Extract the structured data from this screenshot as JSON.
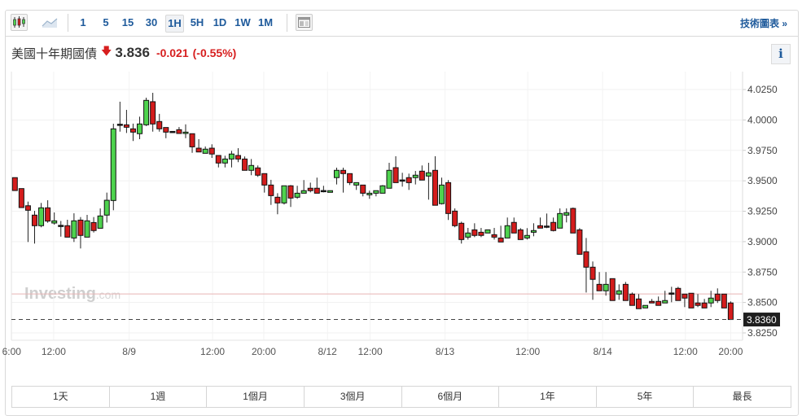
{
  "toolbar": {
    "chart_type_icons": [
      "candlestick-icon",
      "area-chart-icon"
    ],
    "intervals": [
      "1",
      "5",
      "15",
      "30",
      "1H",
      "5H",
      "1D",
      "1W",
      "1M"
    ],
    "active_interval": "1H",
    "layout_icon": "layout-icon",
    "technical_chart_label": "技術圖表 »"
  },
  "header": {
    "name": "美國十年期國債",
    "direction_icon": "arrow-down-icon",
    "price": "3.836",
    "change": "-0.021",
    "change_pct": "(-0.55%)",
    "info_label": "i"
  },
  "watermark": {
    "brand": "Investing",
    "suffix": ".com"
  },
  "colors": {
    "up": "#4ed34e",
    "down": "#d41c1c",
    "negative_text": "#d71f1f",
    "link": "#1e5a9b",
    "prev_close_line": "#e8b4b4"
  },
  "chart_data": {
    "type": "candlestick",
    "interval": "1H",
    "ylim": [
      3.82,
      4.04
    ],
    "y_ticks": [
      "4.0250",
      "4.0000",
      "3.9750",
      "3.9500",
      "3.9250",
      "3.9000",
      "3.8750",
      "3.8500",
      "3.8250"
    ],
    "last_price_label": "3.8360",
    "last_price": 3.836,
    "previous_close": 3.857,
    "grid": true,
    "x_ticks": [
      {
        "label": "6:00",
        "at_candle": 0.5
      },
      {
        "label": "12:00",
        "at_candle": 6.9
      },
      {
        "label": "8/9",
        "at_candle": 18.4
      },
      {
        "label": "12:00",
        "at_candle": 31.1
      },
      {
        "label": "20:00",
        "at_candle": 38.9
      },
      {
        "label": "8/12",
        "at_candle": 48.6
      },
      {
        "label": "12:00",
        "at_candle": 55.1
      },
      {
        "label": "8/13",
        "at_candle": 66.5
      },
      {
        "label": "12:00",
        "at_candle": 79.1
      },
      {
        "label": "8/14",
        "at_candle": 90.5
      },
      {
        "label": "12:00",
        "at_candle": 103.1
      },
      {
        "label": "20:00",
        "at_candle": 110
      }
    ],
    "ohlc_fields": [
      "open",
      "high",
      "low",
      "close"
    ],
    "candles": [
      [
        3.9526,
        3.9526,
        3.942,
        3.942
      ],
      [
        3.9436,
        3.9436,
        3.928,
        3.928
      ],
      [
        3.9295,
        3.9329,
        3.8997,
        3.9258
      ],
      [
        3.9218,
        3.9253,
        3.8984,
        3.9131
      ],
      [
        3.9131,
        3.9318,
        3.9118,
        3.9278
      ],
      [
        3.9278,
        3.934,
        3.9155,
        3.9169
      ],
      [
        3.9153,
        3.924,
        3.914,
        3.9171
      ],
      [
        3.9134,
        3.917,
        3.9041,
        3.9132
      ],
      [
        3.9131,
        3.918,
        3.9037,
        3.9037
      ],
      [
        3.903,
        3.9233,
        3.8997,
        3.9171
      ],
      [
        3.9177,
        3.9202,
        3.8944,
        3.9051
      ],
      [
        3.9037,
        3.922,
        3.9037,
        3.9171
      ],
      [
        3.9157,
        3.9202,
        3.9075,
        3.9091
      ],
      [
        3.911,
        3.9273,
        3.911,
        3.9211
      ],
      [
        3.9218,
        3.9403,
        3.9157,
        3.934
      ],
      [
        3.9338,
        3.9969,
        3.9258,
        3.9927
      ],
      [
        3.9965,
        4.015,
        3.9904,
        3.9963
      ],
      [
        3.996,
        4.0083,
        3.9893,
        3.994
      ],
      [
        3.9927,
        3.997,
        3.9827,
        3.99
      ],
      [
        3.9887,
        4.0027,
        3.9842,
        3.9967
      ],
      [
        3.996,
        4.0183,
        3.995,
        4.0161
      ],
      [
        4.015,
        4.0223,
        3.9904,
        3.9967
      ],
      [
        3.9987,
        4.005,
        3.9904,
        3.9927
      ],
      [
        3.9938,
        3.9938,
        3.985,
        3.99
      ],
      [
        3.9906,
        3.9906,
        3.9902,
        3.9902
      ],
      [
        3.992,
        3.9942,
        3.9889,
        3.9889
      ],
      [
        3.9889,
        3.9964,
        3.985,
        3.99
      ],
      [
        3.9887,
        3.9887,
        3.973,
        3.9779
      ],
      [
        3.9768,
        3.9842,
        3.9737,
        3.9737
      ],
      [
        3.9726,
        3.9782,
        3.9726,
        3.976
      ],
      [
        3.9768,
        3.98,
        3.9688,
        3.972
      ],
      [
        3.9708,
        3.9708,
        3.961,
        3.9646
      ],
      [
        3.9646,
        3.9706,
        3.961,
        3.9679
      ],
      [
        3.9679,
        3.9746,
        3.961,
        3.972
      ],
      [
        3.9708,
        3.9768,
        3.9653,
        3.9679
      ],
      [
        3.9679,
        3.97,
        3.9586,
        3.9586
      ],
      [
        3.9586,
        3.9679,
        3.9546,
        3.9626
      ],
      [
        3.9606,
        3.9626,
        3.9532,
        3.9546
      ],
      [
        3.9559,
        3.9559,
        3.9403,
        3.9465
      ],
      [
        3.9465,
        3.9508,
        3.9302,
        3.9378
      ],
      [
        3.9365,
        3.9398,
        3.9225,
        3.9318
      ],
      [
        3.9318,
        3.9459,
        3.9305,
        3.9459
      ],
      [
        3.9459,
        3.9465,
        3.9285,
        3.9358
      ],
      [
        3.9365,
        3.9459,
        3.9352,
        3.9398
      ],
      [
        3.9398,
        3.9506,
        3.9398,
        3.9419
      ],
      [
        3.9439,
        3.9485,
        3.9405,
        3.9419
      ],
      [
        3.9439,
        3.9526,
        3.9398,
        3.9398
      ],
      [
        3.942,
        3.9459,
        3.9405,
        3.9418
      ],
      [
        3.9405,
        3.9419,
        3.9405,
        3.9419
      ],
      [
        3.9526,
        3.9608,
        3.947,
        3.9586
      ],
      [
        3.9586,
        3.9608,
        3.9403,
        3.9559
      ],
      [
        3.9559,
        3.9559,
        3.9465,
        3.9485
      ],
      [
        3.9465,
        3.9485,
        3.9425,
        3.9485
      ],
      [
        3.9465,
        3.9465,
        3.9372,
        3.9398
      ],
      [
        3.9385,
        3.9419,
        3.9352,
        3.9398
      ],
      [
        3.9398,
        3.9419,
        3.9372,
        3.9419
      ],
      [
        3.9398,
        3.9465,
        3.9398,
        3.9459
      ],
      [
        3.9439,
        3.9648,
        3.9439,
        3.9586
      ],
      [
        3.9608,
        3.9702,
        3.9485,
        3.9485
      ],
      [
        3.9507,
        3.9566,
        3.9452,
        3.9505
      ],
      [
        3.9526,
        3.9559,
        3.9425,
        3.9485
      ],
      [
        3.9526,
        3.9581,
        3.947,
        3.9546
      ],
      [
        3.9579,
        3.9626,
        3.9506,
        3.9506
      ],
      [
        3.9539,
        3.9648,
        3.9345,
        3.9566
      ],
      [
        3.9586,
        3.9702,
        3.9299,
        3.9299
      ],
      [
        3.9312,
        3.9526,
        3.9305,
        3.9465
      ],
      [
        3.9485,
        3.9506,
        3.9178,
        3.9231
      ],
      [
        3.9251,
        3.9273,
        3.9118,
        3.9131
      ],
      [
        3.9151,
        3.9164,
        3.8984,
        3.9017
      ],
      [
        3.9037,
        3.9113,
        3.9017,
        3.9071
      ],
      [
        3.9097,
        3.9151,
        3.9037,
        3.9051
      ],
      [
        3.9077,
        3.9113,
        3.9037,
        3.9051
      ],
      [
        3.9071,
        3.9097,
        3.9071,
        3.9097
      ],
      [
        3.9057,
        3.9113,
        3.9017,
        3.9037
      ],
      [
        3.903,
        3.9131,
        3.8997,
        3.8997
      ],
      [
        3.903,
        3.9198,
        3.903,
        3.9131
      ],
      [
        3.9158,
        3.9198,
        3.9071,
        3.9071
      ],
      [
        3.9097,
        3.9111,
        3.9017,
        3.9017
      ],
      [
        3.903,
        3.9111,
        3.9017,
        3.9051
      ],
      [
        3.9077,
        3.9151,
        3.9044,
        3.9091
      ],
      [
        3.9131,
        3.9198,
        3.9111,
        3.9111
      ],
      [
        3.9128,
        3.9231,
        3.9111,
        3.9124
      ],
      [
        3.9158,
        3.9198,
        3.9084,
        3.9091
      ],
      [
        3.9111,
        3.9273,
        3.9111,
        3.9231
      ],
      [
        3.9218,
        3.9273,
        3.9158,
        3.9238
      ],
      [
        3.9273,
        3.928,
        3.9071,
        3.9071
      ],
      [
        3.9097,
        3.9111,
        3.8896,
        3.8896
      ],
      [
        3.8917,
        3.903,
        3.8582,
        3.879
      ],
      [
        3.879,
        3.8837,
        3.8522,
        3.869
      ],
      [
        3.8649,
        3.875,
        3.8596,
        3.8596
      ],
      [
        3.8596,
        3.875,
        3.8556,
        3.8649
      ],
      [
        3.8696,
        3.8696,
        3.8516,
        3.8516
      ],
      [
        3.8569,
        3.8649,
        3.8522,
        3.8596
      ],
      [
        3.8649,
        3.8669,
        3.8516,
        3.8516
      ],
      [
        3.8569,
        3.8582,
        3.8476,
        3.8476
      ],
      [
        3.8529,
        3.8569,
        3.8449,
        3.8449
      ],
      [
        3.8455,
        3.8476,
        3.8455,
        3.8476
      ],
      [
        3.8509,
        3.8529,
        3.8496,
        3.8496
      ],
      [
        3.8509,
        3.8549,
        3.8476,
        3.8476
      ],
      [
        3.8496,
        3.8596,
        3.8496,
        3.8516
      ],
      [
        3.8578,
        3.8629,
        3.8502,
        3.8574
      ],
      [
        3.8616,
        3.8629,
        3.8516,
        3.8516
      ],
      [
        3.8569,
        3.8569,
        3.8462,
        3.8536
      ],
      [
        3.8576,
        3.8576,
        3.8455,
        3.8455
      ],
      [
        3.8496,
        3.8569,
        3.8462,
        3.8476
      ],
      [
        3.8496,
        3.8529,
        3.8455,
        3.8455
      ],
      [
        3.8496,
        3.8596,
        3.8462,
        3.8536
      ],
      [
        3.8569,
        3.8616,
        3.8496,
        3.8516
      ],
      [
        3.8569,
        3.8569,
        3.8455,
        3.8455
      ],
      [
        3.8496,
        3.8509,
        3.836,
        3.836
      ]
    ]
  },
  "ranges": [
    "1天",
    "1週",
    "1個月",
    "3個月",
    "6個月",
    "1年",
    "5年",
    "最長"
  ]
}
